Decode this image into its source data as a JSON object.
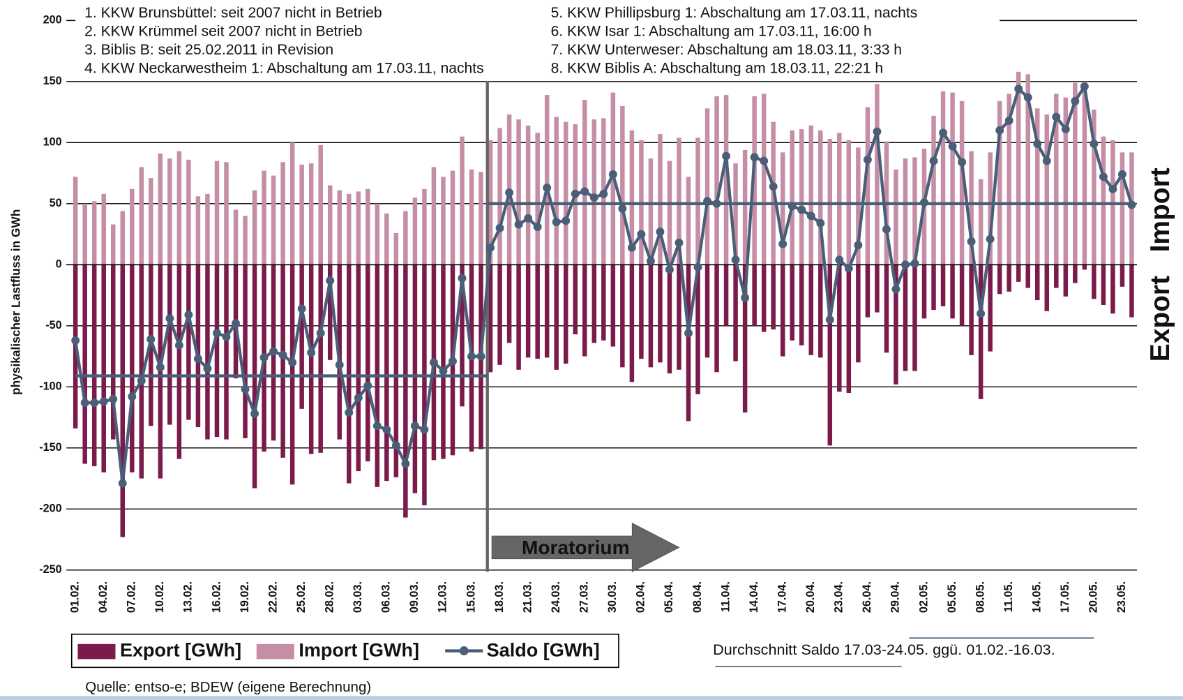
{
  "chart_data": {
    "type": "bar-line",
    "y_label": "physikalischer Lastfluss in GWh",
    "notes": [
      "1. KKW Brunsbüttel: seit 2007 nicht in Betrieb",
      "2. KKW Krümmel seit 2007 nicht in Betrieb",
      "3. Biblis B: seit 25.02.2011 in Revision",
      "4. KKW Neckarwestheim 1: Abschaltung am 17.03.11, nachts",
      "5. KKW Phillipsburg 1: Abschaltung am 17.03.11, nachts",
      "6. KKW Isar 1: Abschaltung am 17.03.11, 16:00 h",
      "7. KKW Unterweser: Abschaltung am 18.03.11, 3:33 h",
      "8. KKW Biblis A:  Abschaltung am 18.03.11, 22:21 h"
    ],
    "arrow_label": "Moratorium",
    "side_labels": [
      "Import",
      "Export"
    ],
    "average_note": "Durchschnitt Saldo 17.03-24.05. ggü. 01.02.-16.03.",
    "source": "Quelle: entso-e; BDEW (eigene Berechnung)",
    "categories": [
      "01.02.",
      null,
      null,
      "04.02.",
      null,
      null,
      "07.02.",
      null,
      null,
      "10.02.",
      null,
      null,
      "13.02.",
      null,
      null,
      "16.02.",
      null,
      null,
      "19.02.",
      null,
      null,
      "22.02.",
      null,
      null,
      "25.02.",
      null,
      null,
      "28.02.",
      null,
      null,
      "03.03.",
      null,
      null,
      "06.03.",
      null,
      null,
      "09.03.",
      null,
      null,
      "12.03.",
      null,
      null,
      "15.03.",
      null,
      null,
      "18.03.",
      null,
      null,
      "21.03.",
      null,
      null,
      "24.03.",
      null,
      null,
      "27.03.",
      null,
      null,
      "30.03.",
      null,
      null,
      "02.04.",
      null,
      null,
      "05.04.",
      null,
      null,
      "08.04.",
      null,
      null,
      "11.04.",
      null,
      null,
      "14.04.",
      null,
      null,
      "17.04.",
      null,
      null,
      "20.04.",
      null,
      null,
      "23.04.",
      null,
      null,
      "26.04.",
      null,
      null,
      "29.04.",
      null,
      null,
      "02.05.",
      null,
      null,
      "05.05.",
      null,
      null,
      "08.05.",
      null,
      null,
      "11.05.",
      null,
      null,
      "14.05.",
      null,
      null,
      "17.05.",
      null,
      null,
      "20.05.",
      null,
      null,
      "23.05.",
      null
    ],
    "series": [
      {
        "name": "Export [GWh]",
        "type": "bar",
        "color": "#7b1b4c",
        "values": [
          -134,
          -163,
          -165,
          -170,
          -143,
          -223,
          -170,
          -175,
          -132,
          -175,
          -131,
          -159,
          -127,
          -133,
          -143,
          -141,
          -143,
          -93,
          -142,
          -183,
          -153,
          -144,
          -158,
          -180,
          -118,
          -155,
          -154,
          -78,
          -143,
          -179,
          -169,
          -161,
          -182,
          -177,
          -174,
          -207,
          -187,
          -197,
          -160,
          -159,
          -156,
          -116,
          -153,
          -151,
          -88,
          -82,
          -64,
          -86,
          -76,
          -77,
          -76,
          -86,
          -81,
          -57,
          -75,
          -64,
          -62,
          -67,
          -84,
          -96,
          -77,
          -84,
          -80,
          -89,
          -86,
          -128,
          -106,
          -76,
          -88,
          -50,
          -79,
          -121,
          -50,
          -55,
          -53,
          -75,
          -62,
          -66,
          -74,
          -76,
          -148,
          -104,
          -105,
          -80,
          -43,
          -39,
          -72,
          -98,
          -87,
          -87,
          -44,
          -37,
          -34,
          -44,
          -50,
          -74,
          -110,
          -71,
          -24,
          -22,
          -14,
          -19,
          -29,
          -38,
          -19,
          -26,
          -15,
          -4,
          -28,
          -33,
          -40,
          -18,
          -43
        ]
      },
      {
        "name": "Import [GWh]",
        "type": "bar",
        "color": "#c58ea6",
        "values": [
          72,
          50,
          52,
          58,
          33,
          44,
          62,
          80,
          71,
          91,
          87,
          93,
          86,
          56,
          58,
          85,
          84,
          45,
          40,
          61,
          77,
          73,
          84,
          100,
          82,
          83,
          98,
          65,
          61,
          58,
          60,
          62,
          50,
          42,
          26,
          44,
          55,
          62,
          80,
          72,
          77,
          105,
          78,
          76,
          102,
          112,
          123,
          119,
          114,
          108,
          139,
          121,
          117,
          115,
          135,
          119,
          120,
          141,
          130,
          110,
          102,
          87,
          107,
          85,
          104,
          72,
          104,
          128,
          138,
          139,
          83,
          94,
          138,
          140,
          117,
          92,
          110,
          111,
          114,
          110,
          103,
          108,
          102,
          96,
          129,
          148,
          101,
          78,
          87,
          88,
          95,
          122,
          142,
          141,
          134,
          93,
          70,
          92,
          134,
          140,
          158,
          156,
          128,
          123,
          140,
          137,
          149,
          150,
          127,
          105,
          102,
          92,
          92
        ]
      },
      {
        "name": "Saldo [GWh]",
        "type": "line",
        "color": "#4a5e78",
        "values": [
          -62,
          -113,
          -113,
          -112,
          -110,
          -179,
          -108,
          -95,
          -61,
          -84,
          -44,
          -66,
          -41,
          -77,
          -85,
          -56,
          -59,
          -48,
          -102,
          -122,
          -76,
          -71,
          -74,
          -80,
          -36,
          -72,
          -56,
          -13,
          -82,
          -121,
          -109,
          -99,
          -132,
          -135,
          -148,
          -163,
          -132,
          -135,
          -80,
          -87,
          -79,
          -11,
          -75,
          -75,
          14,
          30,
          59,
          33,
          38,
          31,
          63,
          35,
          36,
          58,
          60,
          55,
          58,
          74,
          46,
          14,
          25,
          3,
          27,
          -4,
          18,
          -56,
          -2,
          52,
          50,
          89,
          4,
          -27,
          88,
          85,
          64,
          17,
          48,
          45,
          40,
          34,
          -45,
          4,
          -3,
          16,
          86,
          109,
          29,
          -20,
          0,
          1,
          51,
          85,
          108,
          97,
          84,
          19,
          -40,
          21,
          110,
          118,
          144,
          137,
          99,
          85,
          121,
          111,
          134,
          146,
          99,
          72,
          62,
          74,
          49
        ]
      }
    ],
    "averages": [
      -91,
      50
    ],
    "ylim": [
      -250,
      200
    ],
    "yticks": [
      -250,
      -200,
      -150,
      -100,
      -50,
      0,
      50,
      100,
      150,
      200
    ],
    "grid": true
  }
}
